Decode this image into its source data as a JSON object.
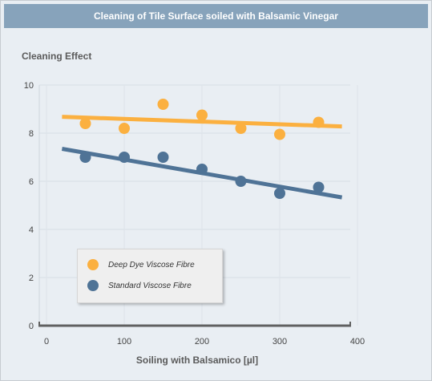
{
  "chart_data": {
    "type": "scatter",
    "title": "Cleaning of Tile Surface soiled with Balsamic Vinegar",
    "ylabel": "Cleaning Effect",
    "xlabel": "Soiling with Balsamico [µl]",
    "xlim": [
      0,
      400
    ],
    "ylim": [
      0,
      10
    ],
    "xticks": [
      "0",
      "100",
      "200",
      "300",
      "400"
    ],
    "yticks": [
      "0",
      "2",
      "4",
      "6",
      "8",
      "10"
    ],
    "grid": true,
    "legend_position": "lower-left",
    "series": [
      {
        "name": "Deep Dye Viscose Fibre",
        "color": "#fbb040",
        "x": [
          50,
          100,
          150,
          200,
          250,
          300,
          350
        ],
        "y": [
          8.4,
          8.2,
          9.2,
          8.75,
          8.2,
          7.95,
          8.45
        ],
        "trendline": {
          "x": [
            20,
            380
          ],
          "y": [
            8.68,
            8.28
          ]
        }
      },
      {
        "name": "Standard Viscose Fibre",
        "color": "#4f7396",
        "x": [
          50,
          100,
          150,
          200,
          250,
          300,
          350
        ],
        "y": [
          7.0,
          7.0,
          7.0,
          6.5,
          6.0,
          5.5,
          5.75
        ],
        "trendline": {
          "x": [
            20,
            380
          ],
          "y": [
            7.35,
            5.33
          ]
        }
      }
    ]
  }
}
